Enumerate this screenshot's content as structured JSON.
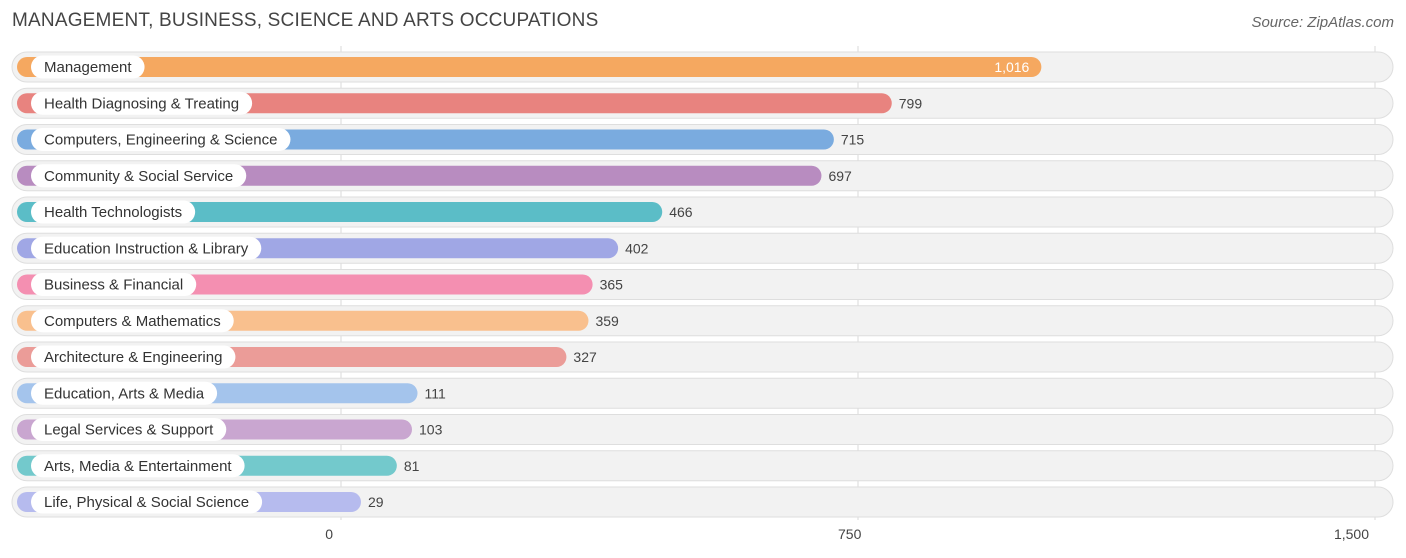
{
  "header": {
    "title": "MANAGEMENT, BUSINESS, SCIENCE AND ARTS OCCUPATIONS",
    "source": "Source: ZipAtlas.com"
  },
  "chart_data": {
    "type": "bar",
    "orientation": "horizontal",
    "title": "MANAGEMENT, BUSINESS, SCIENCE AND ARTS OCCUPATIONS",
    "xlabel": "",
    "ylabel": "",
    "xlim": [
      0,
      1500
    ],
    "ticks": [
      0,
      750,
      1500
    ],
    "tick_labels": [
      "0",
      "750",
      "1,500"
    ],
    "grid": true,
    "categories": [
      "Management",
      "Health Diagnosing & Treating",
      "Computers, Engineering & Science",
      "Community & Social Service",
      "Health Technologists",
      "Education Instruction & Library",
      "Business & Financial",
      "Computers & Mathematics",
      "Architecture & Engineering",
      "Education, Arts & Media",
      "Legal Services & Support",
      "Arts, Media & Entertainment",
      "Life, Physical & Social Science"
    ],
    "values": [
      1016,
      799,
      715,
      697,
      466,
      402,
      365,
      359,
      327,
      111,
      103,
      81,
      29
    ],
    "value_labels": [
      "1,016",
      "799",
      "715",
      "697",
      "466",
      "402",
      "365",
      "359",
      "327",
      "111",
      "103",
      "81",
      "29"
    ],
    "colors": [
      "#f5a860",
      "#e8837f",
      "#7aabdf",
      "#b88cc0",
      "#5bbdc7",
      "#a0a7e5",
      "#f48fb1",
      "#f9c08e",
      "#eb9c98",
      "#a4c4ec",
      "#c9a6d0",
      "#73c9cc",
      "#b6bbee"
    ]
  }
}
